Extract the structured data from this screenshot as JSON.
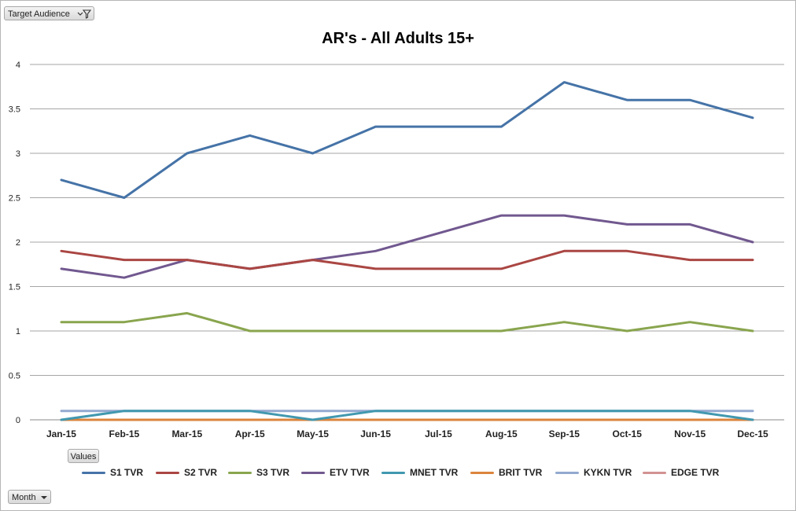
{
  "pivot_buttons": {
    "filter_field": "Target Audience",
    "values_field": "Values",
    "axis_field": "Month"
  },
  "icons": {
    "filter": "filter-dropdown-icon",
    "dropdown": "chevron-down-icon"
  },
  "chart_data": {
    "type": "line",
    "title": "AR's - All Adults 15+",
    "xlabel": "",
    "ylabel": "",
    "categories": [
      "Jan-15",
      "Feb-15",
      "Mar-15",
      "Apr-15",
      "May-15",
      "Jun-15",
      "Jul-15",
      "Aug-15",
      "Sep-15",
      "Oct-15",
      "Nov-15",
      "Dec-15"
    ],
    "ylim": [
      0,
      4
    ],
    "yticks": [
      "0",
      "0.5",
      "1",
      "1.5",
      "2",
      "2.5",
      "3",
      "3.5",
      "4"
    ],
    "grid": true,
    "legend_position": "bottom",
    "series": [
      {
        "name": "S1 TVR",
        "color": "#4573a7",
        "values": [
          2.7,
          2.5,
          3.0,
          3.2,
          3.0,
          3.3,
          3.3,
          3.3,
          3.8,
          3.6,
          3.6,
          3.4
        ]
      },
      {
        "name": "S2 TVR",
        "color": "#aa4643",
        "values": [
          1.9,
          1.8,
          1.8,
          1.7,
          1.8,
          1.7,
          1.7,
          1.7,
          1.9,
          1.9,
          1.8,
          1.8
        ]
      },
      {
        "name": "S3 TVR",
        "color": "#89a54e",
        "values": [
          1.1,
          1.1,
          1.2,
          1.0,
          1.0,
          1.0,
          1.0,
          1.0,
          1.1,
          1.0,
          1.1,
          1.0
        ]
      },
      {
        "name": "ETV TVR",
        "color": "#71588f",
        "values": [
          1.7,
          1.6,
          1.8,
          1.7,
          1.8,
          1.9,
          2.1,
          2.3,
          2.3,
          2.2,
          2.2,
          2.0
        ]
      },
      {
        "name": "MNET TVR",
        "color": "#4198af",
        "values": [
          0.0,
          0.1,
          0.1,
          0.1,
          0.0,
          0.1,
          0.1,
          0.1,
          0.1,
          0.1,
          0.1,
          0.0
        ]
      },
      {
        "name": "BRIT TVR",
        "color": "#db843d",
        "values": [
          0,
          0,
          0,
          0,
          0,
          0,
          0,
          0,
          0,
          0,
          0,
          0
        ]
      },
      {
        "name": "KYKN TVR",
        "color": "#93a9cf",
        "values": [
          0.1,
          0.1,
          0.1,
          0.1,
          0.1,
          0.1,
          0.1,
          0.1,
          0.1,
          0.1,
          0.1,
          0.1
        ]
      },
      {
        "name": "EDGE TVR",
        "color": "#d19392",
        "values": [
          0,
          0,
          0,
          0,
          0,
          0,
          0,
          0,
          0,
          0,
          0,
          0
        ]
      }
    ]
  }
}
